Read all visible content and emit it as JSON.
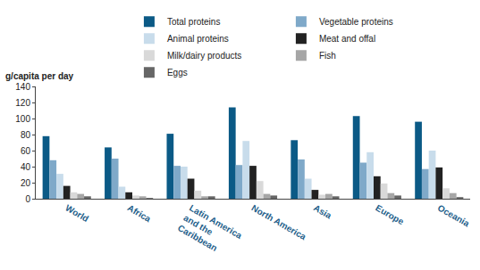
{
  "chart_data": {
    "type": "bar",
    "y_label": "g/capita per day",
    "categories": [
      "World",
      "Africa",
      "Latin America and the Caribbean",
      "North America",
      "Asia",
      "Europe",
      "Oceania"
    ],
    "series": [
      {
        "name": "Total proteins",
        "color": "#0b5a86",
        "values": [
          78,
          64,
          81,
          114,
          73,
          103,
          96
        ]
      },
      {
        "name": "Vegetable proteins",
        "color": "#7fa9c9",
        "values": [
          48,
          50,
          41,
          42,
          49,
          45,
          37
        ]
      },
      {
        "name": "Animal proteins",
        "color": "#c8dceb",
        "values": [
          31,
          15,
          40,
          72,
          25,
          58,
          60
        ]
      },
      {
        "name": "Meat and offal",
        "color": "#222222",
        "values": [
          16,
          8,
          25,
          41,
          11,
          28,
          39
        ]
      },
      {
        "name": "Milk/dairy products",
        "color": "#d9d9d9",
        "values": [
          8,
          4,
          10,
          22,
          5,
          19,
          13
        ]
      },
      {
        "name": "Fish",
        "color": "#a6a6a6",
        "values": [
          6,
          3,
          3,
          6,
          6,
          7,
          7
        ]
      },
      {
        "name": "Eggs",
        "color": "#666666",
        "values": [
          3,
          1,
          3,
          4,
          3,
          4,
          2
        ]
      }
    ],
    "ylim": [
      0,
      140
    ],
    "yticks": [
      0,
      20,
      40,
      60,
      80,
      100,
      120,
      140
    ],
    "grid": false,
    "legend": "top"
  }
}
